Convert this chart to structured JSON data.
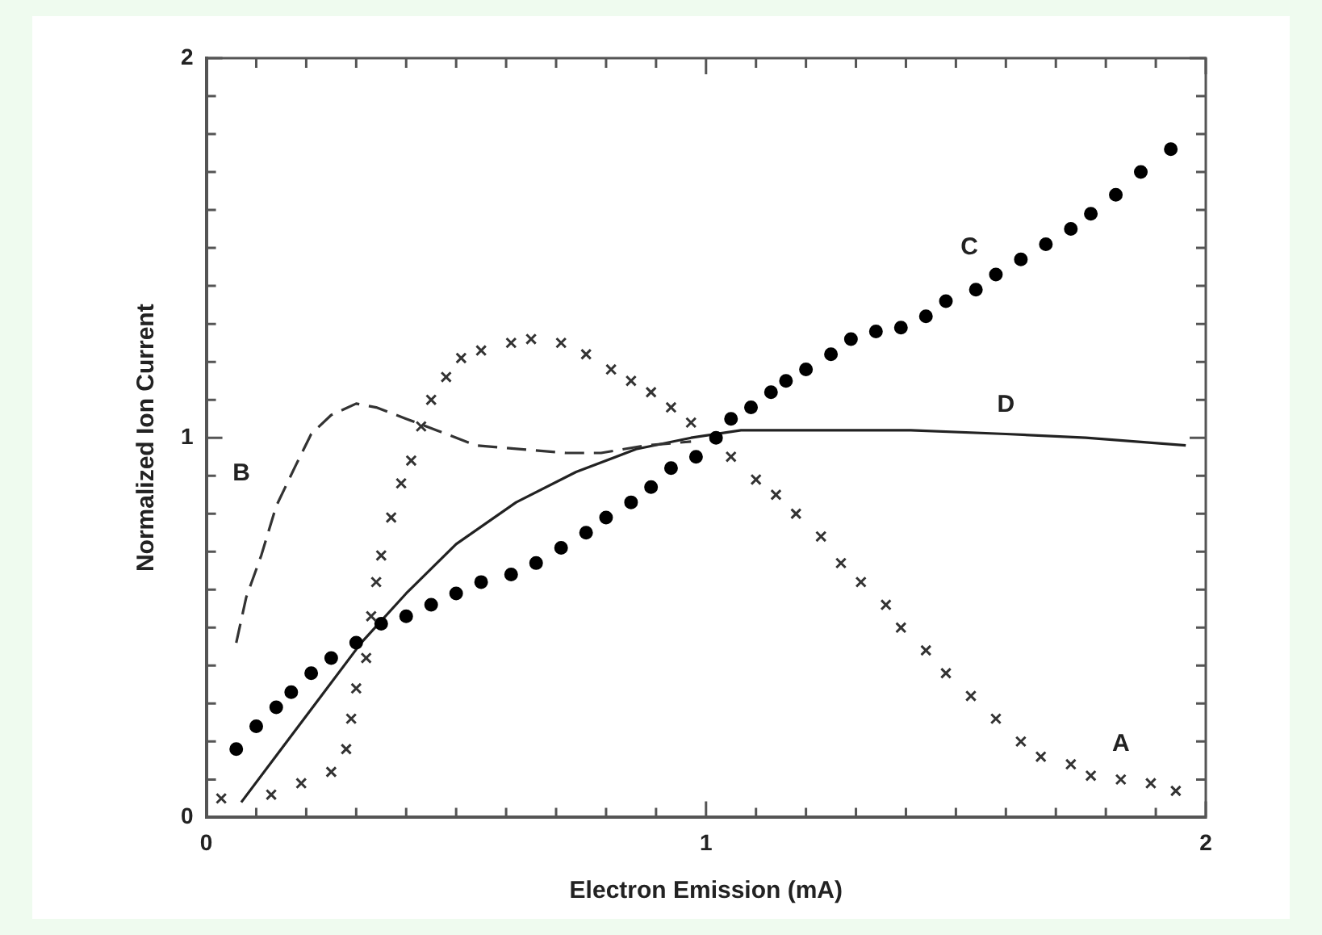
{
  "chart_data": {
    "type": "line",
    "xlabel": "Electron Emission (mA)",
    "ylabel": "Normalized Ion Current",
    "xlim": [
      0,
      2
    ],
    "ylim": [
      0,
      2
    ],
    "xticks": [
      0,
      {
        "value": 0.1,
        "label": null
      },
      {
        "value": 0.2,
        "label": null
      },
      {
        "value": 0.3,
        "label": null
      },
      {
        "value": 0.4,
        "label": null
      },
      {
        "value": 0.5,
        "label": null
      },
      {
        "value": 0.6,
        "label": null
      },
      {
        "value": 0.7,
        "label": null
      },
      {
        "value": 0.8,
        "label": null
      },
      {
        "value": 0.9,
        "label": null
      },
      1,
      {
        "value": 1.1,
        "label": null
      },
      {
        "value": 1.2,
        "label": null
      },
      {
        "value": 1.3,
        "label": null
      },
      {
        "value": 1.4,
        "label": null
      },
      {
        "value": 1.5,
        "label": null
      },
      {
        "value": 1.6,
        "label": null
      },
      {
        "value": 1.7,
        "label": null
      },
      {
        "value": 1.8,
        "label": null
      },
      {
        "value": 1.9,
        "label": null
      },
      2
    ],
    "yticks": [
      0,
      {
        "value": 0.1,
        "label": null
      },
      {
        "value": 0.2,
        "label": null
      },
      {
        "value": 0.3,
        "label": null
      },
      {
        "value": 0.4,
        "label": null
      },
      {
        "value": 0.5,
        "label": null
      },
      {
        "value": 0.6,
        "label": null
      },
      {
        "value": 0.7,
        "label": null
      },
      {
        "value": 0.8,
        "label": null
      },
      {
        "value": 0.9,
        "label": null
      },
      1,
      {
        "value": 1.1,
        "label": null
      },
      {
        "value": 1.2,
        "label": null
      },
      {
        "value": 1.3,
        "label": null
      },
      {
        "value": 1.4,
        "label": null
      },
      {
        "value": 1.5,
        "label": null
      },
      {
        "value": 1.6,
        "label": null
      },
      {
        "value": 1.7,
        "label": null
      },
      {
        "value": 1.8,
        "label": null
      },
      {
        "value": 1.9,
        "label": null
      },
      2
    ],
    "grid": false,
    "legend": false,
    "series": [
      {
        "name": "A",
        "type": "scatter",
        "marker": "cross",
        "color": "#333333",
        "x": [
          0.03,
          0.13,
          0.19,
          0.25,
          0.28,
          0.29,
          0.3,
          0.32,
          0.33,
          0.34,
          0.35,
          0.37,
          0.39,
          0.41,
          0.43,
          0.45,
          0.48,
          0.51,
          0.55,
          0.61,
          0.65,
          0.71,
          0.76,
          0.81,
          0.85,
          0.89,
          0.93,
          0.97,
          1.05,
          1.1,
          1.14,
          1.18,
          1.23,
          1.27,
          1.31,
          1.36,
          1.39,
          1.44,
          1.48,
          1.53,
          1.58,
          1.63,
          1.67,
          1.73,
          1.77,
          1.83,
          1.89,
          1.94
        ],
        "values": [
          0.05,
          0.06,
          0.09,
          0.12,
          0.18,
          0.26,
          0.34,
          0.42,
          0.53,
          0.62,
          0.69,
          0.79,
          0.88,
          0.94,
          1.03,
          1.1,
          1.16,
          1.21,
          1.23,
          1.25,
          1.26,
          1.25,
          1.22,
          1.18,
          1.15,
          1.12,
          1.08,
          1.04,
          0.95,
          0.89,
          0.85,
          0.8,
          0.74,
          0.67,
          0.62,
          0.56,
          0.5,
          0.44,
          0.38,
          0.32,
          0.26,
          0.2,
          0.16,
          0.14,
          0.11,
          0.1,
          0.09,
          0.07
        ]
      },
      {
        "name": "B",
        "type": "line",
        "line_style": "dashed",
        "color": "#333333",
        "x": [
          0.06,
          0.08,
          0.11,
          0.14,
          0.18,
          0.21,
          0.25,
          0.3,
          0.34,
          0.4,
          0.46,
          0.54,
          0.63,
          0.72,
          0.79,
          0.88,
          0.97
        ],
        "values": [
          0.46,
          0.58,
          0.69,
          0.82,
          0.93,
          1.01,
          1.06,
          1.09,
          1.08,
          1.05,
          1.02,
          0.98,
          0.97,
          0.96,
          0.96,
          0.98,
          0.99
        ]
      },
      {
        "name": "C",
        "type": "scatter",
        "marker": "circle",
        "color": "#000000",
        "x": [
          0.06,
          0.1,
          0.14,
          0.17,
          0.21,
          0.25,
          0.3,
          0.35,
          0.4,
          0.45,
          0.5,
          0.55,
          0.61,
          0.66,
          0.71,
          0.76,
          0.8,
          0.85,
          0.89,
          0.93,
          0.98,
          1.02,
          1.05,
          1.09,
          1.13,
          1.16,
          1.2,
          1.25,
          1.29,
          1.34,
          1.39,
          1.44,
          1.48,
          1.54,
          1.58,
          1.63,
          1.68,
          1.73,
          1.77,
          1.82,
          1.87,
          1.93
        ],
        "values": [
          0.18,
          0.24,
          0.29,
          0.33,
          0.38,
          0.42,
          0.46,
          0.51,
          0.53,
          0.56,
          0.59,
          0.62,
          0.64,
          0.67,
          0.71,
          0.75,
          0.79,
          0.83,
          0.87,
          0.92,
          0.95,
          1.0,
          1.05,
          1.08,
          1.12,
          1.15,
          1.18,
          1.22,
          1.26,
          1.28,
          1.29,
          1.32,
          1.36,
          1.39,
          1.43,
          1.47,
          1.51,
          1.55,
          1.59,
          1.64,
          1.7,
          1.76
        ]
      },
      {
        "name": "D",
        "type": "line",
        "line_style": "solid",
        "color": "#222222",
        "x": [
          0.07,
          0.15,
          0.23,
          0.31,
          0.4,
          0.5,
          0.62,
          0.74,
          0.86,
          0.97,
          1.07,
          1.41,
          1.6,
          1.76,
          1.96
        ],
        "values": [
          0.04,
          0.18,
          0.32,
          0.46,
          0.59,
          0.72,
          0.83,
          0.91,
          0.97,
          1.0,
          1.02,
          1.02,
          1.01,
          1.0,
          0.98
        ]
      }
    ]
  }
}
